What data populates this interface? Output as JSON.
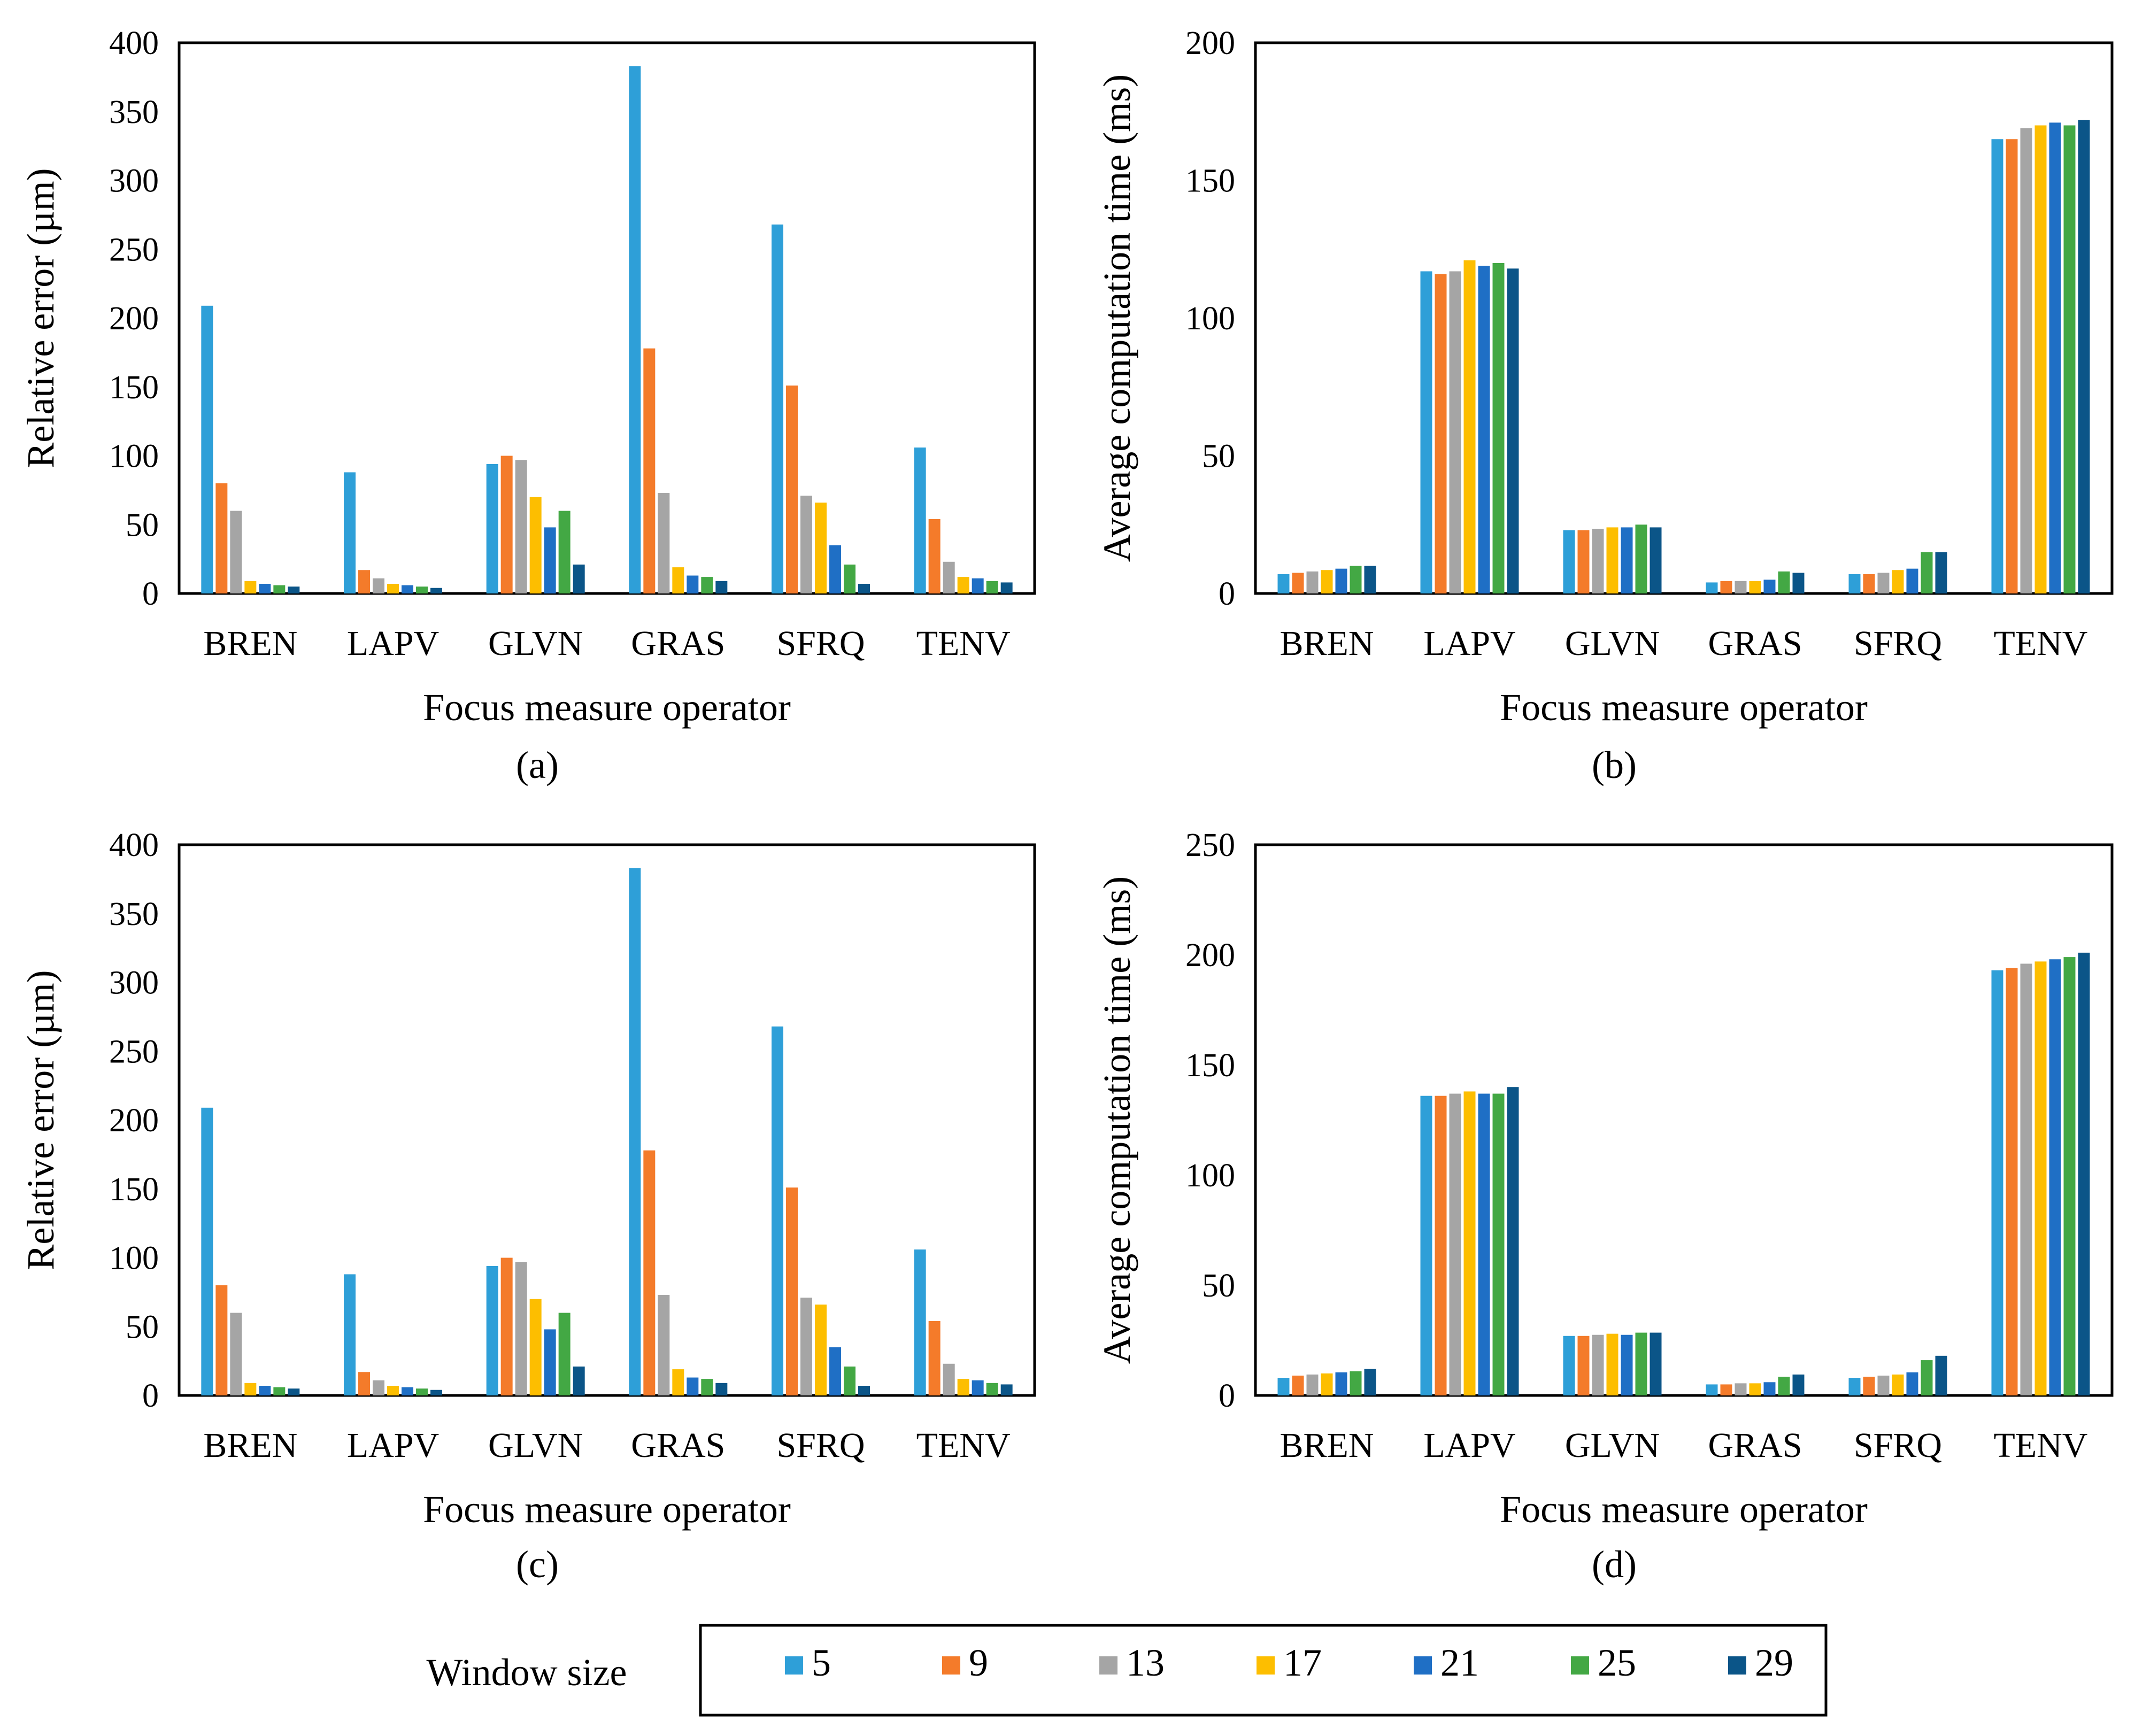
{
  "chart_data": [
    {
      "id": "a",
      "type": "bar",
      "caption": "(a)",
      "xlabel": "Focus measure operator",
      "ylabel": "Relative error (µm)",
      "ylim": [
        0,
        400
      ],
      "yticks": [
        0,
        50,
        100,
        150,
        200,
        250,
        300,
        350,
        400
      ],
      "categories": [
        "BREN",
        "LAPV",
        "GLVN",
        "GRAS",
        "SFRQ",
        "TENV"
      ],
      "series": [
        {
          "name": "5",
          "values": [
            209,
            88,
            94,
            383,
            268,
            106
          ]
        },
        {
          "name": "9",
          "values": [
            80,
            17,
            100,
            178,
            151,
            54
          ]
        },
        {
          "name": "13",
          "values": [
            60,
            11,
            97,
            73,
            71,
            23
          ]
        },
        {
          "name": "17",
          "values": [
            9,
            7,
            70,
            19,
            66,
            12
          ]
        },
        {
          "name": "21",
          "values": [
            7,
            6,
            48,
            13,
            35,
            11
          ]
        },
        {
          "name": "25",
          "values": [
            6,
            5,
            60,
            12,
            21,
            9
          ]
        },
        {
          "name": "29",
          "values": [
            5,
            4,
            21,
            9,
            7,
            8
          ]
        }
      ]
    },
    {
      "id": "b",
      "type": "bar",
      "caption": "(b)",
      "xlabel": "Focus measure operator",
      "ylabel": "Average computation time (ms)",
      "ylim": [
        0,
        200
      ],
      "yticks": [
        0,
        50,
        100,
        150,
        200
      ],
      "categories": [
        "BREN",
        "LAPV",
        "GLVN",
        "GRAS",
        "SFRQ",
        "TENV"
      ],
      "series": [
        {
          "name": "5",
          "values": [
            7,
            117,
            23,
            4,
            7,
            165
          ]
        },
        {
          "name": "9",
          "values": [
            7.5,
            116,
            23,
            4.5,
            7,
            165
          ]
        },
        {
          "name": "13",
          "values": [
            8,
            117,
            23.5,
            4.5,
            7.5,
            169
          ]
        },
        {
          "name": "17",
          "values": [
            8.5,
            121,
            24,
            4.5,
            8.5,
            170
          ]
        },
        {
          "name": "21",
          "values": [
            9,
            119,
            24,
            5,
            9,
            171
          ]
        },
        {
          "name": "25",
          "values": [
            10,
            120,
            25,
            8,
            15,
            170
          ]
        },
        {
          "name": "29",
          "values": [
            10,
            118,
            24,
            7.5,
            15,
            172
          ]
        }
      ]
    },
    {
      "id": "c",
      "type": "bar",
      "caption": "(c)",
      "xlabel": "Focus measure operator",
      "ylabel": "Relative error (µm)",
      "ylim": [
        0,
        400
      ],
      "yticks": [
        0,
        50,
        100,
        150,
        200,
        250,
        300,
        350,
        400
      ],
      "categories": [
        "BREN",
        "LAPV",
        "GLVN",
        "GRAS",
        "SFRQ",
        "TENV"
      ],
      "series": [
        {
          "name": "5",
          "values": [
            209,
            88,
            94,
            383,
            268,
            106
          ]
        },
        {
          "name": "9",
          "values": [
            80,
            17,
            100,
            178,
            151,
            54
          ]
        },
        {
          "name": "13",
          "values": [
            60,
            11,
            97,
            73,
            71,
            23
          ]
        },
        {
          "name": "17",
          "values": [
            9,
            7,
            70,
            19,
            66,
            12
          ]
        },
        {
          "name": "21",
          "values": [
            7,
            6,
            48,
            13,
            35,
            11
          ]
        },
        {
          "name": "25",
          "values": [
            6,
            5,
            60,
            12,
            21,
            9
          ]
        },
        {
          "name": "29",
          "values": [
            5,
            4,
            21,
            9,
            7,
            8
          ]
        }
      ]
    },
    {
      "id": "d",
      "type": "bar",
      "caption": "(d)",
      "xlabel": "Focus measure operator",
      "ylabel": "Average computation time (ms)",
      "ylim": [
        0,
        250
      ],
      "yticks": [
        0,
        50,
        100,
        150,
        200,
        250
      ],
      "categories": [
        "BREN",
        "LAPV",
        "GLVN",
        "GRAS",
        "SFRQ",
        "TENV"
      ],
      "series": [
        {
          "name": "5",
          "values": [
            8,
            136,
            27,
            5,
            8,
            193
          ]
        },
        {
          "name": "9",
          "values": [
            9,
            136,
            27,
            5,
            8.5,
            194
          ]
        },
        {
          "name": "13",
          "values": [
            9.5,
            137,
            27.5,
            5.5,
            9,
            196
          ]
        },
        {
          "name": "17",
          "values": [
            10,
            138,
            28,
            5.5,
            9.5,
            197
          ]
        },
        {
          "name": "21",
          "values": [
            10.5,
            137,
            27.5,
            6,
            10.5,
            198
          ]
        },
        {
          "name": "25",
          "values": [
            11,
            137,
            28.5,
            8.5,
            16,
            199
          ]
        },
        {
          "name": "29",
          "values": [
            12,
            140,
            28.5,
            9.5,
            18,
            201
          ]
        }
      ]
    }
  ],
  "legend": {
    "title": "Window size",
    "items": [
      "5",
      "9",
      "13",
      "17",
      "21",
      "25",
      "29"
    ]
  },
  "colors": {
    "series": [
      "#2E9FD8",
      "#F47B2A",
      "#A5A5A5",
      "#FDBE00",
      "#1F6FC5",
      "#43A844",
      "#0B5588"
    ],
    "axis": "#000000"
  }
}
